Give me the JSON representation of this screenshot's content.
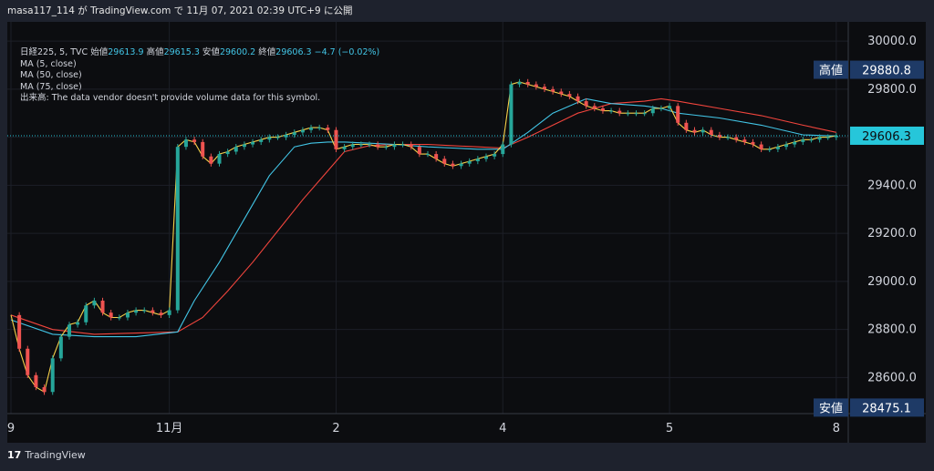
{
  "header": {
    "publisher": "masa117_114 が TradingView.com で 11月 07, 2021 02:39 UTC+9 に公開"
  },
  "legend": {
    "symbol": "日経225, 5, TVC",
    "open_label": "始値",
    "open": "29613.9",
    "high_label": "高値",
    "high": "29615.3",
    "low_label": "安値",
    "low": "29600.2",
    "close_label": "終値",
    "close": "29606.3",
    "change": "−4.7 (−0.02%)",
    "ma5": "MA (5, close)",
    "ma50": "MA (50, close)",
    "ma75": "MA (75, close)",
    "volume_note": "出来高: The data vendor doesn't provide volume data for this symbol."
  },
  "badges": {
    "high_label": "高値",
    "high_value": "29880.8",
    "low_label": "安値",
    "low_value": "28475.1",
    "current_value": "29606.3"
  },
  "footer": {
    "brand": "TradingView"
  },
  "colors": {
    "up": "#26a69a",
    "down": "#ef5350",
    "ma5": "#f7d14a",
    "ma50": "#42c5e6",
    "ma75": "#f2453d",
    "badge": "#1e3a66",
    "current": "#26c6da"
  },
  "chart_data": {
    "type": "line",
    "title": "日経225, 5, TVC",
    "xlabel": "",
    "ylabel": "",
    "ylim": [
      28450,
      30080
    ],
    "y_ticks": [
      "30000.0",
      "29800.0",
      "29600.0",
      "29400.0",
      "29200.0",
      "29000.0",
      "28800.0",
      "28600.0"
    ],
    "x_ticks": [
      {
        "label": "9",
        "t": 0
      },
      {
        "label": "11月",
        "t": 19
      },
      {
        "label": "2",
        "t": 39
      },
      {
        "label": "4",
        "t": 59
      },
      {
        "label": "5",
        "t": 79
      },
      {
        "label": "8",
        "t": 99
      }
    ],
    "x_range": [
      0,
      100
    ],
    "series": [
      {
        "name": "MA (5, close)",
        "x": [
          0,
          1,
          2,
          3,
          4,
          5,
          6,
          7,
          8,
          9,
          10,
          11,
          12,
          13,
          14,
          15,
          16,
          17,
          18,
          19,
          20,
          21,
          22,
          23,
          24,
          25,
          26,
          27,
          28,
          29,
          30,
          31,
          32,
          33,
          34,
          35,
          36,
          37,
          38,
          39,
          40,
          41,
          42,
          43,
          44,
          45,
          46,
          47,
          48,
          49,
          50,
          51,
          52,
          53,
          54,
          55,
          56,
          57,
          58,
          59,
          60,
          61,
          62,
          63,
          64,
          65,
          66,
          67,
          68,
          69,
          70,
          71,
          72,
          73,
          74,
          75,
          76,
          77,
          78,
          79,
          80,
          81,
          82,
          83,
          84,
          85,
          86,
          87,
          88,
          89,
          90,
          91,
          92,
          93,
          94,
          95,
          96,
          97,
          98,
          99
        ],
        "values": [
          28860,
          28720,
          28610,
          28560,
          28540,
          28680,
          28770,
          28820,
          28830,
          28900,
          28920,
          28870,
          28850,
          28850,
          28870,
          28880,
          28880,
          28870,
          28860,
          28880,
          29560,
          29590,
          29580,
          29520,
          29490,
          29530,
          29540,
          29560,
          29570,
          29580,
          29590,
          29600,
          29600,
          29610,
          29620,
          29630,
          29640,
          29640,
          29630,
          29550,
          29560,
          29570,
          29570,
          29570,
          29560,
          29560,
          29570,
          29570,
          29560,
          29530,
          29530,
          29510,
          29490,
          29480,
          29490,
          29500,
          29510,
          29520,
          29530,
          29570,
          29820,
          29830,
          29820,
          29810,
          29800,
          29790,
          29780,
          29770,
          29750,
          29730,
          29720,
          29710,
          29710,
          29700,
          29700,
          29700,
          29700,
          29720,
          29720,
          29730,
          29660,
          29630,
          29620,
          29630,
          29610,
          29600,
          29600,
          29590,
          29580,
          29570,
          29550,
          29550,
          29560,
          29570,
          29580,
          29590,
          29590,
          29600,
          29600,
          29606
        ]
      },
      {
        "name": "MA (50, close)",
        "x": [
          0,
          5,
          10,
          15,
          20,
          22,
          25,
          28,
          31,
          34,
          36,
          38,
          40,
          43,
          46,
          50,
          53,
          56,
          59,
          62,
          65,
          69,
          72,
          76,
          78,
          80,
          85,
          90,
          95,
          99
        ],
        "values": [
          28840,
          28780,
          28770,
          28770,
          28790,
          28920,
          29080,
          29260,
          29440,
          29560,
          29575,
          29580,
          29580,
          29575,
          29570,
          29560,
          29555,
          29550,
          29550,
          29620,
          29700,
          29760,
          29740,
          29730,
          29720,
          29700,
          29680,
          29650,
          29610,
          29605
        ]
      },
      {
        "name": "MA (75, close)",
        "x": [
          0,
          5,
          10,
          15,
          20,
          23,
          26,
          29,
          32,
          35,
          38,
          40,
          43,
          46,
          50,
          53,
          56,
          59,
          62,
          65,
          68,
          72,
          76,
          78,
          80,
          85,
          90,
          95,
          99
        ],
        "values": [
          28860,
          28800,
          28780,
          28785,
          28790,
          28850,
          28960,
          29080,
          29210,
          29340,
          29460,
          29540,
          29565,
          29570,
          29570,
          29565,
          29560,
          29555,
          29600,
          29650,
          29700,
          29740,
          29750,
          29760,
          29750,
          29720,
          29690,
          29650,
          29620
        ]
      }
    ]
  }
}
